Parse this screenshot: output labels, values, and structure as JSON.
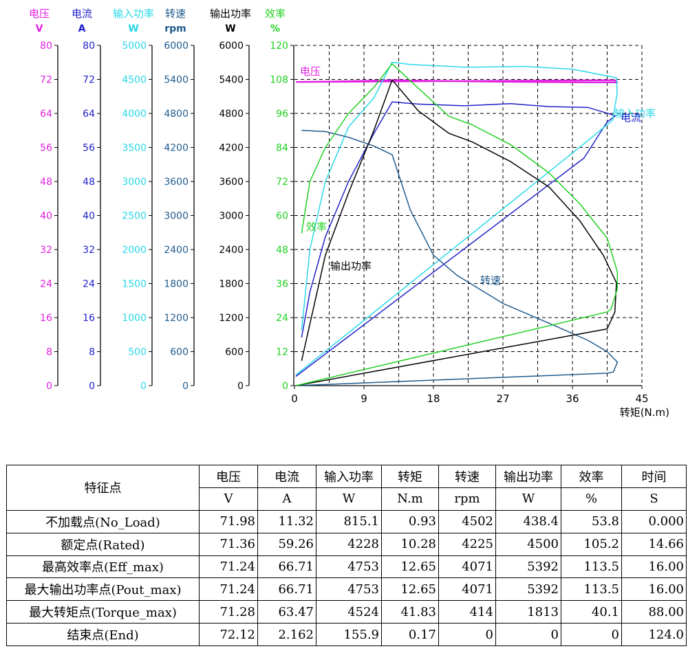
{
  "chart_data": {
    "type": "line",
    "xlabel": "转矩(N.m)",
    "xlim": [
      0,
      45
    ],
    "xticks": [
      0,
      9,
      18,
      27,
      36,
      45
    ],
    "axes": [
      {
        "name": "电压",
        "unit": "V",
        "color": "#e020e0",
        "ticks": [
          "0",
          "8",
          "16",
          "24",
          "32",
          "40",
          "48",
          "56",
          "64",
          "72",
          "80"
        ]
      },
      {
        "name": "电流",
        "unit": "A",
        "color": "#2020c8",
        "ticks": [
          "0",
          "8",
          "16",
          "24",
          "32",
          "40",
          "48",
          "56",
          "64",
          "72",
          "80"
        ]
      },
      {
        "name": "输入功率",
        "unit": "W",
        "color": "#28d8e8",
        "ticks": [
          "0",
          "500",
          "1000",
          "1500",
          "2000",
          "2500",
          "3000",
          "3500",
          "4000",
          "4500",
          "5000"
        ]
      },
      {
        "name": "转速",
        "unit": "rpm",
        "color": "#1f5a8c",
        "ticks": [
          "0",
          "600",
          "1200",
          "1800",
          "2400",
          "3000",
          "3600",
          "4200",
          "4800",
          "5400",
          "6000"
        ]
      },
      {
        "name": "输出功率",
        "unit": "W",
        "color": "#000000",
        "ticks": [
          "0",
          "600",
          "1200",
          "1800",
          "2400",
          "3000",
          "3600",
          "4200",
          "4800",
          "5400",
          "6000"
        ]
      },
      {
        "name": "效率",
        "unit": "%",
        "color": "#20d020",
        "ticks": [
          "0",
          "12",
          "24",
          "36",
          "48",
          "60",
          "72",
          "84",
          "96",
          "108",
          "120"
        ]
      }
    ],
    "series": [
      {
        "name": "电压",
        "unit": "V",
        "max": 80,
        "color": "#e020e0",
        "x": [
          0.2,
          5,
          10,
          12.7,
          20,
          30,
          38,
          41.8,
          41.5,
          0.2
        ],
        "y": [
          71.4,
          71.5,
          71.7,
          71.8,
          71.6,
          71.4,
          71.3,
          71.3,
          71.8,
          71.4
        ]
      },
      {
        "name": "电流",
        "unit": "A",
        "max": 80,
        "color": "#2020c8",
        "x": [
          0.93,
          2,
          4,
          7,
          10.28,
          12.65,
          16,
          22,
          28,
          33,
          38,
          41.6,
          40.5,
          37.5,
          0.17
        ],
        "y": [
          11.32,
          22,
          35,
          48,
          59.26,
          66.71,
          66.2,
          65.8,
          66.3,
          65.6,
          65.4,
          63.47,
          62,
          53.5,
          2.162
        ]
      },
      {
        "name": "输入功率",
        "unit": "W",
        "max": 5000,
        "color": "#28d8e8",
        "x": [
          0.93,
          2,
          4,
          7,
          10.28,
          12.65,
          15,
          22,
          30,
          36,
          41.7,
          41.8,
          41.2,
          38,
          0.17
        ],
        "y": [
          815.1,
          2000,
          3000,
          3800,
          4228,
          4753,
          4720,
          4680,
          4690,
          4650,
          4524,
          4300,
          3900,
          3600,
          155.9
        ]
      },
      {
        "name": "转速",
        "unit": "rpm",
        "max": 6000,
        "color": "#1f5a8c",
        "x": [
          0.93,
          4,
          7,
          10.28,
          12.65,
          15,
          18,
          21,
          27,
          33,
          38,
          40.5,
          41.83,
          41.3,
          40.5,
          0.17
        ],
        "y": [
          4502,
          4480,
          4380,
          4225,
          4071,
          3100,
          2300,
          1950,
          1450,
          1100,
          800,
          600,
          414,
          240,
          220,
          0
        ]
      },
      {
        "name": "输出功率",
        "unit": "W",
        "max": 6000,
        "color": "#000000",
        "x": [
          0.93,
          4,
          7,
          10.28,
          12.65,
          16,
          20,
          23,
          28,
          33,
          37,
          40,
          41.7,
          41.5,
          40.5,
          0.17
        ],
        "y": [
          438.4,
          2300,
          3400,
          4500,
          5392,
          4850,
          4450,
          4300,
          3950,
          3500,
          2900,
          2300,
          1813,
          1300,
          1000,
          0
        ]
      },
      {
        "name": "效率",
        "unit": "%",
        "max": 120,
        "color": "#20d020",
        "x": [
          0.93,
          2,
          4,
          7,
          10.28,
          12.65,
          16,
          20,
          23,
          28,
          33,
          37,
          40.5,
          41.83,
          41.8,
          41,
          40.5,
          0.17
        ],
        "y": [
          53.8,
          72,
          84,
          96,
          105.2,
          113.5,
          105,
          95,
          92,
          85,
          75,
          64,
          52,
          40.1,
          34,
          27,
          26,
          0
        ]
      }
    ],
    "annotations": [
      {
        "text": "电压",
        "color": "#e020e0"
      },
      {
        "text": "效率",
        "color": "#20d020"
      },
      {
        "text": "输出功率",
        "color": "#000000"
      },
      {
        "text": "转速",
        "color": "#1f5a8c"
      },
      {
        "text": "输入功率",
        "color": "#28d8e8"
      },
      {
        "text": "电流",
        "color": "#2020c8"
      }
    ]
  },
  "table": {
    "corner": "特征点",
    "headers": [
      "电压",
      "电流",
      "输入功率",
      "转矩",
      "转速",
      "输出功率",
      "效率",
      "时间"
    ],
    "units": [
      "V",
      "A",
      "W",
      "N.m",
      "rpm",
      "W",
      "%",
      "S"
    ],
    "rows": [
      {
        "label": "不加载点(No_Load)",
        "values": [
          "71.98",
          "11.32",
          "815.1",
          "0.93",
          "4502",
          "438.4",
          "53.8",
          "0.000"
        ]
      },
      {
        "label": "额定点(Rated)",
        "values": [
          "71.36",
          "59.26",
          "4228",
          "10.28",
          "4225",
          "4500",
          "105.2",
          "14.66"
        ]
      },
      {
        "label": "最高效率点(Eff_max)",
        "values": [
          "71.24",
          "66.71",
          "4753",
          "12.65",
          "4071",
          "5392",
          "113.5",
          "16.00"
        ]
      },
      {
        "label": "最大输出功率点(Pout_max)",
        "values": [
          "71.24",
          "66.71",
          "4753",
          "12.65",
          "4071",
          "5392",
          "113.5",
          "16.00"
        ]
      },
      {
        "label": "最大转矩点(Torque_max)",
        "values": [
          "71.28",
          "63.47",
          "4524",
          "41.83",
          "414",
          "1813",
          "40.1",
          "88.00"
        ]
      },
      {
        "label": "结束点(End)",
        "values": [
          "72.12",
          "2.162",
          "155.9",
          "0.17",
          "0",
          "0",
          "0",
          "124.0"
        ]
      }
    ]
  }
}
